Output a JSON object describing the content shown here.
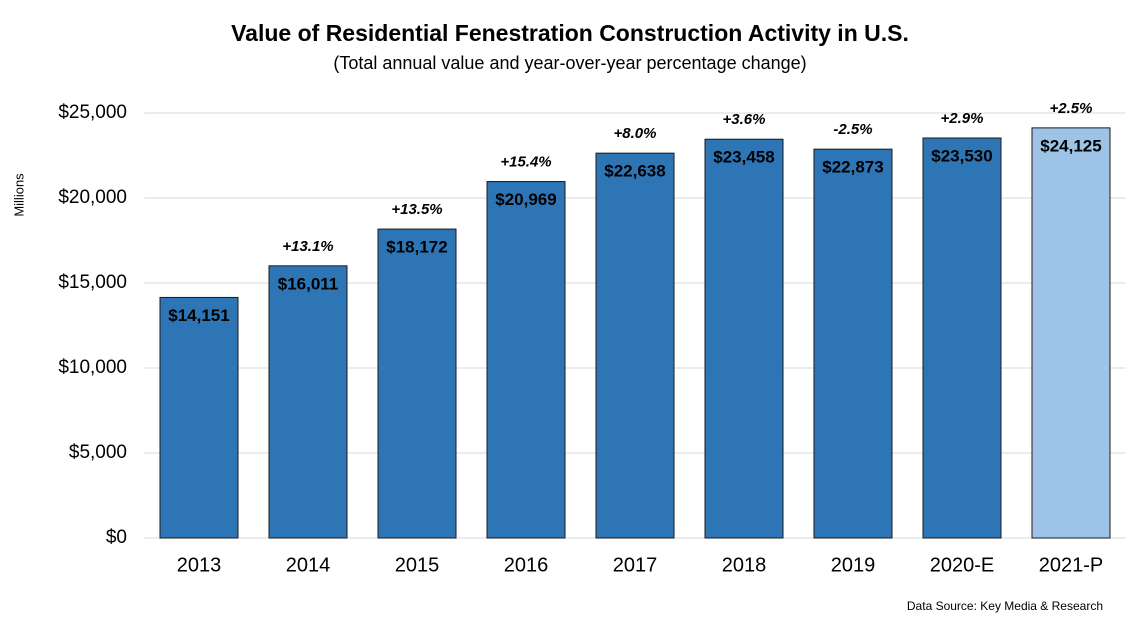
{
  "chart_data": {
    "type": "bar",
    "title": "Value of Residential Fenestration Construction Activity in U.S.",
    "subtitle": "(Total annual value and year-over-year percentage change)",
    "y_label": "Millions",
    "source": "Data Source: Key Media & Research",
    "categories": [
      "2013",
      "2014",
      "2015",
      "2016",
      "2017",
      "2018",
      "2019",
      "2020-E",
      "2021-P"
    ],
    "values": [
      14151,
      16011,
      18172,
      20969,
      22638,
      23458,
      22873,
      23530,
      24125
    ],
    "value_labels": [
      "$14,151",
      "$16,011",
      "$18,172",
      "$20,969",
      "$22,638",
      "$23,458",
      "$22,873",
      "$23,530",
      "$24,125"
    ],
    "annotations": [
      null,
      "+13.1%",
      "+13.5%",
      "+15.4%",
      "+8.0%",
      "+3.6%",
      "-2.5%",
      "+2.9%",
      "+2.5%"
    ],
    "colors": [
      "#2e75b6",
      "#2e75b6",
      "#2e75b6",
      "#2e75b6",
      "#2e75b6",
      "#2e75b6",
      "#2e75b6",
      "#2e75b6",
      "#9dc3e6"
    ],
    "ylim": [
      0,
      25000
    ],
    "yticks": [
      {
        "value": 0,
        "label": "$0"
      },
      {
        "value": 5000,
        "label": "$5,000"
      },
      {
        "value": 10000,
        "label": "$10,000"
      },
      {
        "value": 15000,
        "label": "$15,000"
      },
      {
        "value": 20000,
        "label": "$20,000"
      },
      {
        "value": 25000,
        "label": "$25,000"
      }
    ],
    "grid": true
  }
}
